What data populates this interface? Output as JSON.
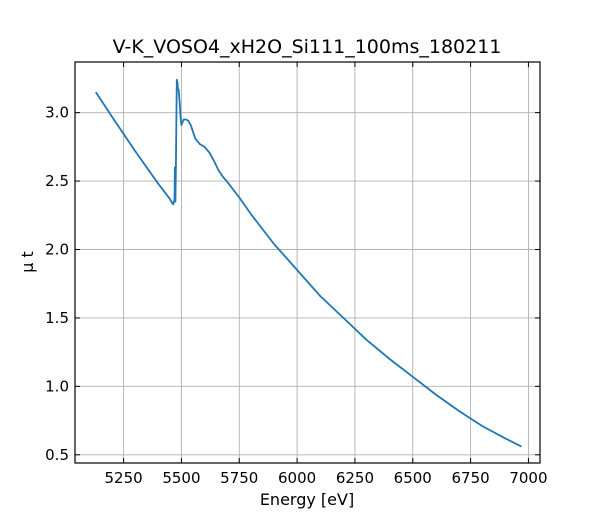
{
  "chart_data": {
    "type": "line",
    "title": "V-K_VOSO4_xH2O_Si111_100ms_180211",
    "xlabel": "Energy [eV]",
    "ylabel": "μ t",
    "xlim": [
      5040,
      7050
    ],
    "ylim": [
      0.44,
      3.37
    ],
    "xticks": [
      5250,
      5500,
      5750,
      6000,
      6250,
      6500,
      6750,
      7000
    ],
    "yticks": [
      0.5,
      1.0,
      1.5,
      2.0,
      2.5,
      3.0
    ],
    "xtick_labels": [
      "5250",
      "5500",
      "5750",
      "6000",
      "6250",
      "6500",
      "6750",
      "7000"
    ],
    "ytick_labels": [
      "0.5",
      "1.0",
      "1.5",
      "2.0",
      "2.5",
      "3.0"
    ],
    "grid": true,
    "color": "#1f77b4",
    "series": [
      {
        "x": [
          5130,
          5200,
          5300,
          5400,
          5450,
          5460,
          5465,
          5468,
          5470,
          5472,
          5474,
          5476,
          5478,
          5480,
          5483,
          5485,
          5488,
          5492,
          5496,
          5500,
          5505,
          5510,
          5515,
          5520,
          5530,
          5540,
          5550,
          5560,
          5570,
          5580,
          5590,
          5600,
          5620,
          5640,
          5660,
          5680,
          5700,
          5750,
          5800,
          5850,
          5900,
          6000,
          6100,
          6200,
          6300,
          6400,
          6500,
          6600,
          6700,
          6800,
          6900,
          6970
        ],
        "y": [
          3.15,
          2.97,
          2.72,
          2.48,
          2.37,
          2.34,
          2.33,
          2.35,
          2.36,
          2.6,
          2.35,
          2.6,
          2.9,
          3.24,
          3.22,
          3.17,
          3.17,
          3.08,
          2.97,
          2.91,
          2.93,
          2.95,
          2.95,
          2.95,
          2.94,
          2.91,
          2.86,
          2.81,
          2.79,
          2.77,
          2.76,
          2.75,
          2.71,
          2.65,
          2.58,
          2.53,
          2.49,
          2.38,
          2.26,
          2.15,
          2.04,
          1.85,
          1.66,
          1.5,
          1.34,
          1.2,
          1.07,
          0.94,
          0.82,
          0.71,
          0.62,
          0.56
        ]
      }
    ]
  }
}
